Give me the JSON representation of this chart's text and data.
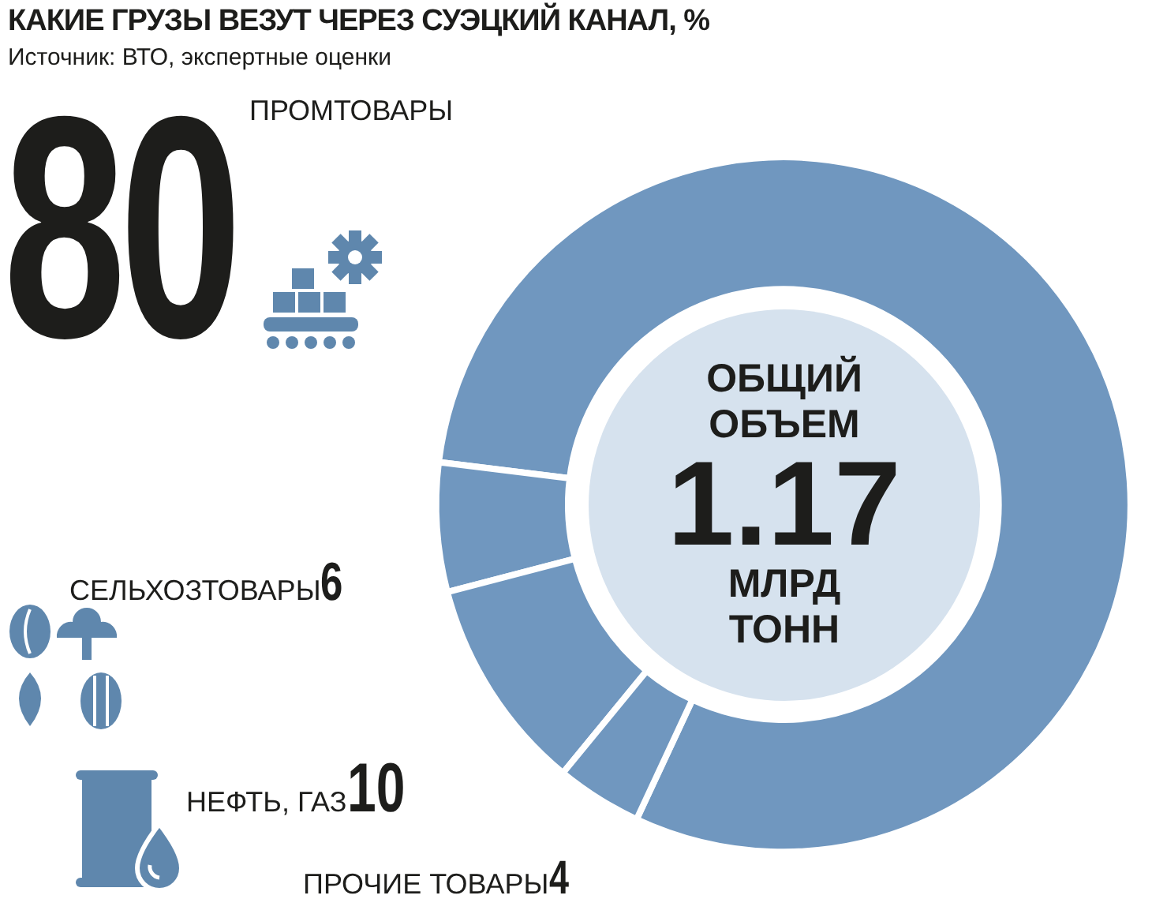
{
  "chart_data": {
    "type": "donut",
    "title": "КАКИЕ ГРУЗЫ ВЕЗУТ ЧЕРЕЗ СУЭЦКИЙ КАНАЛ, %",
    "subtitle": "Источник: ВТО, экспертные оценки",
    "categories": [
      "ПРОМТОВАРЫ",
      "СЕЛЬХОЗТОВАРЫ",
      "НЕФТЬ, ГАЗ",
      "ПРОЧИЕ ТОВАРЫ"
    ],
    "values": [
      80,
      6,
      10,
      4
    ],
    "colors": [
      "#7097bf",
      "#7097bf",
      "#7097bf",
      "#7097bf"
    ],
    "data_labels": true,
    "annotations": [
      "ОБЩИЙ ОБЪЕМ",
      "1.17",
      "МЛРД ТОНН"
    ]
  }
}
